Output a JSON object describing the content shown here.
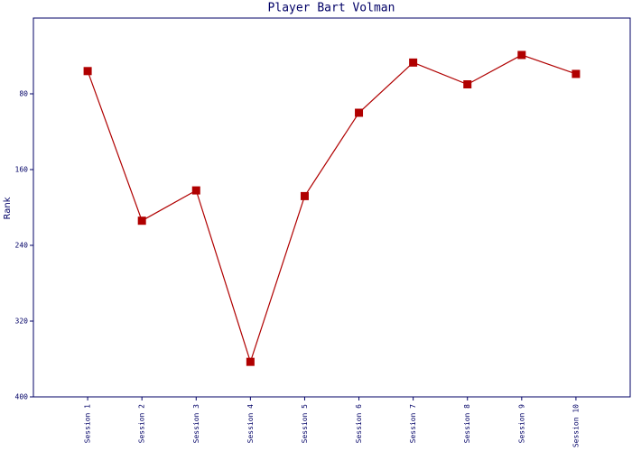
{
  "chart_data": {
    "type": "line",
    "title": "Player Bart Volman",
    "y_label": "Rank",
    "categories": [
      "Session 1",
      "Session 2",
      "Session 3",
      "Session 4",
      "Session 5",
      "Session 6",
      "Session 7",
      "Session 8",
      "Session 9",
      "Session 10"
    ],
    "series": [
      {
        "name": "Rank",
        "color": "#b00000",
        "values": [
          56,
          214,
          182,
          363,
          188,
          100,
          47,
          70,
          39,
          59
        ]
      }
    ],
    "ylim": [
      0,
      400
    ],
    "yticks": [
      80,
      160,
      240,
      320,
      400
    ],
    "y_inverted": true,
    "grid": false
  }
}
